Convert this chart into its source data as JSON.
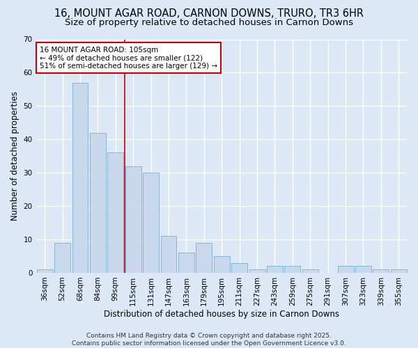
{
  "title_line1": "16, MOUNT AGAR ROAD, CARNON DOWNS, TRURO, TR3 6HR",
  "title_line2": "Size of property relative to detached houses in Carnon Downs",
  "xlabel": "Distribution of detached houses by size in Carnon Downs",
  "ylabel": "Number of detached properties",
  "categories": [
    "36sqm",
    "52sqm",
    "68sqm",
    "84sqm",
    "99sqm",
    "115sqm",
    "131sqm",
    "147sqm",
    "163sqm",
    "179sqm",
    "195sqm",
    "211sqm",
    "227sqm",
    "243sqm",
    "259sqm",
    "275sqm",
    "291sqm",
    "307sqm",
    "323sqm",
    "339sqm",
    "355sqm"
  ],
  "values": [
    1,
    9,
    57,
    42,
    36,
    32,
    30,
    11,
    6,
    9,
    5,
    3,
    1,
    2,
    2,
    1,
    0,
    2,
    2,
    1,
    1
  ],
  "bar_color": "#c8d9ee",
  "bar_edge_color": "#7aadd4",
  "background_color": "#dce8f5",
  "grid_color": "#ffffff",
  "vline_color": "#cc0000",
  "annotation_text": "16 MOUNT AGAR ROAD: 105sqm\n← 49% of detached houses are smaller (122)\n51% of semi-detached houses are larger (129) →",
  "annotation_box_color": "#ffffff",
  "annotation_box_edge": "#cc0000",
  "ylim": [
    0,
    70
  ],
  "yticks": [
    0,
    10,
    20,
    30,
    40,
    50,
    60,
    70
  ],
  "footer_text": "Contains HM Land Registry data © Crown copyright and database right 2025.\nContains public sector information licensed under the Open Government Licence v3.0.",
  "title_fontsize": 10.5,
  "subtitle_fontsize": 9.5,
  "axis_label_fontsize": 8.5,
  "tick_fontsize": 7.5,
  "annotation_fontsize": 7.5,
  "footer_fontsize": 6.5
}
